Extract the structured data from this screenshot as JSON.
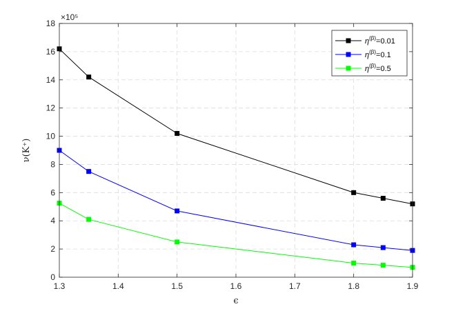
{
  "chart_data": {
    "type": "line",
    "xlabel": "ϵ",
    "ylabel": "ν(K⁺)",
    "y_multiplier": "×10⁵",
    "xlim": [
      1.3,
      1.9
    ],
    "ylim": [
      0,
      18
    ],
    "xticks": [
      1.3,
      1.4,
      1.5,
      1.6,
      1.7,
      1.8,
      1.9
    ],
    "yticks": [
      0,
      2,
      4,
      6,
      8,
      10,
      12,
      14,
      16,
      18
    ],
    "grid": true,
    "legend_position": "top-right",
    "x": [
      1.3,
      1.35,
      1.5,
      1.8,
      1.85,
      1.9
    ],
    "series": [
      {
        "name": "η(β)=0.01",
        "legend_greek": "η",
        "legend_sup": "(β)",
        "legend_val": "=0.01",
        "color": "#000000",
        "marker": "square",
        "values": [
          16.2,
          14.2,
          10.2,
          6.0,
          5.6,
          5.2
        ]
      },
      {
        "name": "η(β)=0.1",
        "legend_greek": "η",
        "legend_sup": "(β)",
        "legend_val": "=0.1",
        "color": "#0000ff",
        "marker": "square",
        "values": [
          9.0,
          7.5,
          4.7,
          2.3,
          2.1,
          1.9
        ]
      },
      {
        "name": "η(β)=0.5",
        "legend_greek": "η",
        "legend_sup": "(β)",
        "legend_val": "=0.5",
        "color": "#00ff00",
        "marker": "square",
        "values": [
          5.25,
          4.1,
          2.5,
          1.0,
          0.85,
          0.7
        ]
      }
    ]
  }
}
